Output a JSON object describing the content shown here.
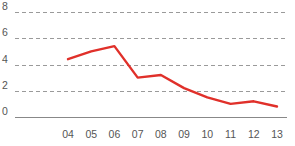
{
  "chart_data": {
    "type": "line",
    "categories": [
      "04",
      "05",
      "06",
      "07",
      "08",
      "09",
      "10",
      "11",
      "12",
      "13"
    ],
    "values": [
      4.4,
      5.0,
      5.4,
      3.0,
      3.2,
      2.2,
      1.5,
      1.0,
      1.2,
      0.8
    ],
    "color": "#e0302a",
    "ylim": [
      0,
      8
    ],
    "yticks": [
      0,
      2,
      4,
      6,
      8
    ],
    "grid": true
  }
}
